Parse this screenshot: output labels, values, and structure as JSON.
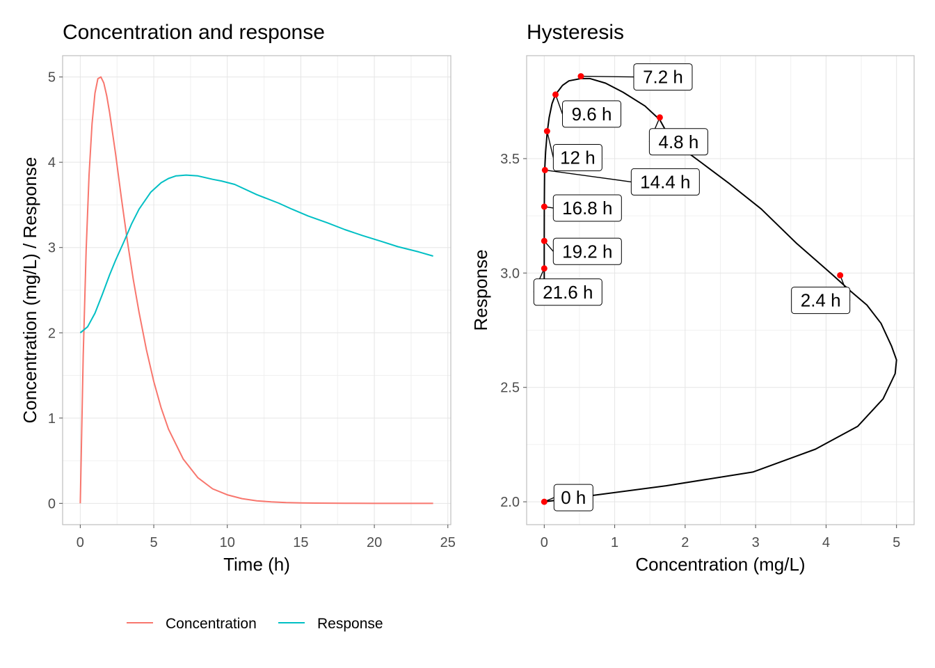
{
  "chart_data": [
    {
      "type": "line",
      "title": "Concentration and response",
      "xlabel": "Time (h)",
      "ylabel": "Concentration (mg/L) / Response",
      "xlim": [
        -1.2,
        25.2
      ],
      "ylim": [
        -0.25,
        5.25
      ],
      "xticks": [
        0,
        5,
        10,
        15,
        20,
        25
      ],
      "yticks": [
        0,
        1,
        2,
        3,
        4,
        5
      ],
      "grid": true,
      "legend": "bottom",
      "series": [
        {
          "name": "Concentration",
          "color": "#F8766D",
          "x": [
            0,
            0.2,
            0.4,
            0.6,
            0.8,
            1.0,
            1.2,
            1.4,
            1.6,
            1.8,
            2.0,
            2.4,
            2.8,
            3.2,
            3.6,
            4.0,
            4.5,
            5.0,
            5.5,
            6.0,
            7.0,
            8.0,
            9.0,
            10.0,
            11.0,
            12.0,
            13.0,
            14.0,
            15.0,
            16.0,
            18.0,
            20.0,
            22.0,
            24.0
          ],
          "y": [
            0,
            1.73,
            2.96,
            3.85,
            4.45,
            4.81,
            4.98,
            5.0,
            4.93,
            4.78,
            4.58,
            4.1,
            3.58,
            3.08,
            2.63,
            2.24,
            1.8,
            1.43,
            1.12,
            0.87,
            0.52,
            0.3,
            0.17,
            0.1,
            0.055,
            0.03,
            0.017,
            0.009,
            0.005,
            0.003,
            0.001,
            0.0,
            0.0,
            0.0
          ]
        },
        {
          "name": "Response",
          "color": "#00BFC4",
          "x": [
            0,
            0.5,
            1.0,
            1.5,
            2.0,
            2.4,
            3.0,
            3.5,
            4.0,
            4.8,
            5.5,
            6.0,
            6.5,
            7.2,
            8.0,
            9.0,
            9.6,
            10.5,
            12.0,
            13.5,
            14.4,
            15.5,
            16.8,
            18.0,
            19.2,
            20.5,
            21.6,
            23.0,
            24.0
          ],
          "y": [
            2.0,
            2.07,
            2.23,
            2.45,
            2.68,
            2.85,
            3.08,
            3.28,
            3.45,
            3.65,
            3.76,
            3.81,
            3.84,
            3.85,
            3.84,
            3.8,
            3.78,
            3.74,
            3.62,
            3.52,
            3.45,
            3.37,
            3.29,
            3.21,
            3.14,
            3.07,
            3.01,
            2.95,
            2.9
          ]
        }
      ]
    },
    {
      "type": "line",
      "title": "Hysteresis",
      "xlabel": "Concentration (mg/L)",
      "ylabel": "Response",
      "xlim": [
        -0.25,
        5.25
      ],
      "ylim": [
        1.9,
        3.95
      ],
      "xticks": [
        0,
        1,
        2,
        3,
        4,
        5
      ],
      "yticks": [
        2.0,
        2.5,
        3.0,
        3.5
      ],
      "grid": true,
      "series": [
        {
          "color": "#000000",
          "x": [
            0,
            1.73,
            2.96,
            3.85,
            4.45,
            4.81,
            4.98,
            5.0,
            4.93,
            4.78,
            4.58,
            4.35,
            4.1,
            3.58,
            3.08,
            2.63,
            2.24,
            1.8,
            1.64,
            1.43,
            1.12,
            0.87,
            0.65,
            0.52,
            0.35,
            0.26,
            0.16,
            0.11,
            0.07,
            0.04,
            0.02,
            0.01,
            0.005,
            0.003,
            0.001,
            0.0,
            0.0,
            0.0
          ],
          "y": [
            2.0,
            2.07,
            2.13,
            2.23,
            2.33,
            2.45,
            2.56,
            2.62,
            2.68,
            2.78,
            2.86,
            2.92,
            2.99,
            3.13,
            3.28,
            3.39,
            3.48,
            3.58,
            3.67,
            3.73,
            3.79,
            3.83,
            3.85,
            3.85,
            3.84,
            3.82,
            3.78,
            3.74,
            3.68,
            3.61,
            3.53,
            3.47,
            3.44,
            3.37,
            3.28,
            3.14,
            3.01,
            2.97
          ]
        }
      ],
      "points": [
        {
          "label": "0 h",
          "x": 0.0,
          "y": 2.0,
          "color": "#FF0000"
        },
        {
          "label": "2.4 h",
          "x": 4.2,
          "y": 2.99,
          "color": "#FF0000"
        },
        {
          "label": "4.8 h",
          "x": 1.64,
          "y": 3.68,
          "color": "#FF0000"
        },
        {
          "label": "7.2 h",
          "x": 0.52,
          "y": 3.86,
          "color": "#FF0000"
        },
        {
          "label": "9.6 h",
          "x": 0.16,
          "y": 3.78,
          "color": "#FF0000"
        },
        {
          "label": "12 h",
          "x": 0.04,
          "y": 3.62,
          "color": "#FF0000"
        },
        {
          "label": "14.4 h",
          "x": 0.01,
          "y": 3.45,
          "color": "#FF0000"
        },
        {
          "label": "16.8 h",
          "x": 0.0,
          "y": 3.29,
          "color": "#FF0000"
        },
        {
          "label": "19.2 h",
          "x": 0.0,
          "y": 3.14,
          "color": "#FF0000"
        },
        {
          "label": "21.6 h",
          "x": 0.0,
          "y": 3.02,
          "color": "#FF0000"
        }
      ]
    }
  ]
}
